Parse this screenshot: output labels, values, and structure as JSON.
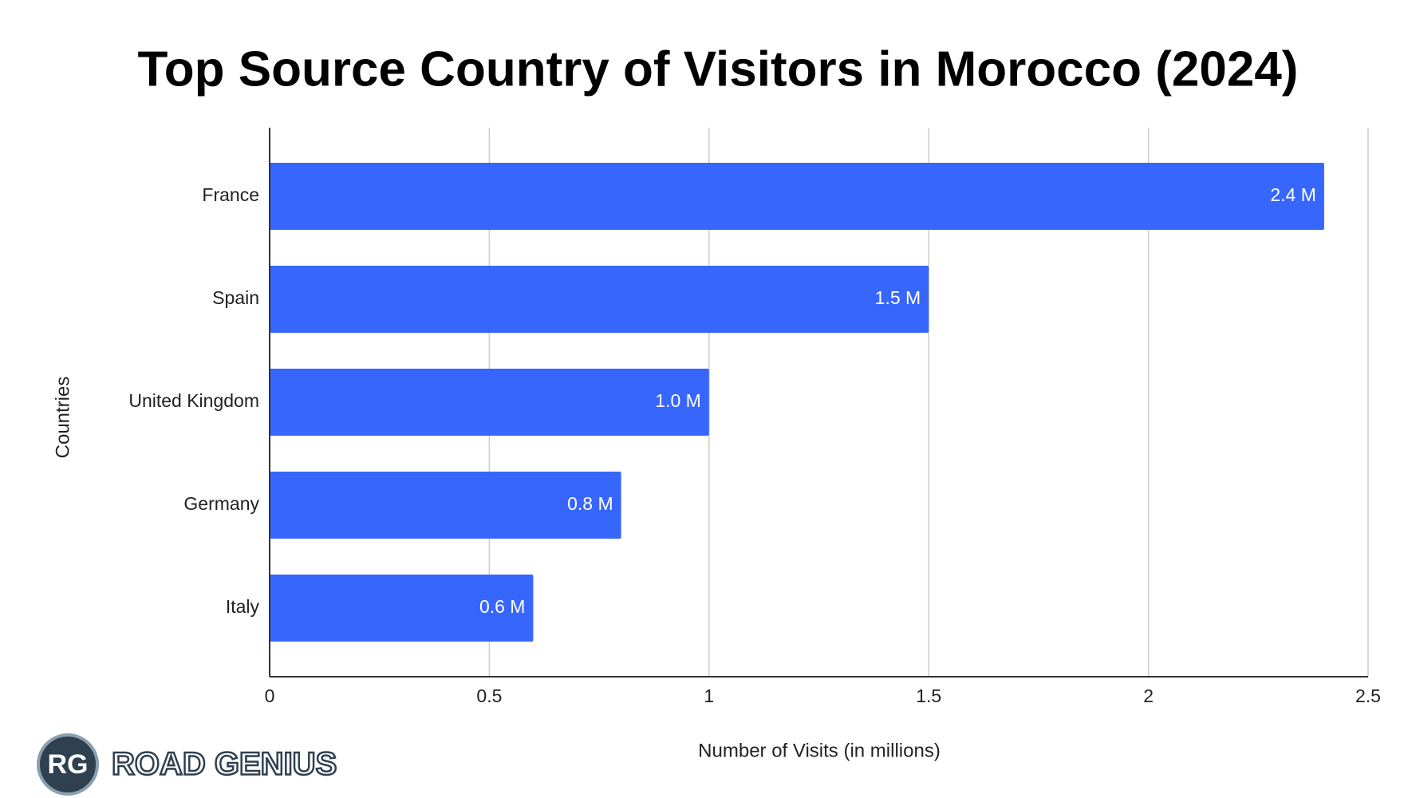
{
  "chart_data": {
    "type": "bar",
    "orientation": "horizontal",
    "title": "Top Source Country of Visitors in Morocco (2024)",
    "x_label": "Number of Visits (in millions)",
    "y_label": "Countries",
    "categories": [
      "France",
      "Spain",
      "United Kingdom",
      "Germany",
      "Italy"
    ],
    "values": [
      2.4,
      1.5,
      1.0,
      0.8,
      0.6
    ],
    "value_labels": [
      "2.4 M",
      "1.5 M",
      "1.0 M",
      "0.8 M",
      "0.6 M"
    ],
    "color": "#3766fd",
    "xlim": [
      0,
      2.5
    ],
    "xticks": [
      0,
      0.5,
      1,
      1.5,
      2,
      2.5
    ],
    "grid": true
  },
  "logo": {
    "badge": "RG",
    "name": "ROAD GENIUS"
  }
}
